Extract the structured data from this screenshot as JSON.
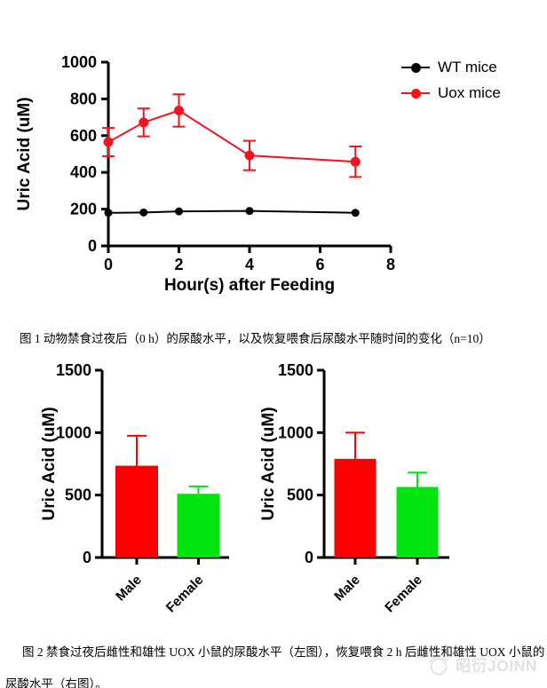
{
  "captions": {
    "fig1": "图 1 动物禁食过夜后（0 h）的尿酸水平，以及恢复喂食后尿酸水平随时间的变化（n=10）",
    "fig2_line1": "图 2 禁食过夜后雌性和雄性 UOX 小鼠的尿酸水平（左图），恢复喂食 2 h 后雌性和雄性 UOX 小鼠的",
    "fig2_line2": "尿酸水平（右图）。"
  },
  "watermark": {
    "text": "昭衍JOINN",
    "icon": "joinn-logo",
    "color": "#e2e2e2"
  },
  "chart_data": [
    {
      "id": "uric-acid-timecourse",
      "type": "line",
      "title": "",
      "xlabel": "Hour(s) after Feeding",
      "ylabel": "Uric Acid (uM)",
      "xlim": [
        0,
        8
      ],
      "ylim": [
        0,
        1000
      ],
      "xticks": [
        0,
        2,
        4,
        6,
        8
      ],
      "yticks": [
        0,
        200,
        400,
        600,
        800,
        1000
      ],
      "x": [
        0,
        1,
        2,
        4,
        7
      ],
      "series": [
        {
          "name": "WT mice",
          "color": "#000000",
          "values": [
            180,
            182,
            188,
            190,
            180
          ],
          "errors": [
            0,
            0,
            0,
            0,
            0
          ]
        },
        {
          "name": "Uox mice",
          "color": "#f1141e",
          "values": [
            565,
            672,
            737,
            492,
            458
          ],
          "errors": [
            77,
            76,
            88,
            80,
            83
          ]
        }
      ],
      "legend_position": "right",
      "grid": false
    },
    {
      "id": "uric-acid-by-sex-fasted",
      "type": "bar",
      "title": "",
      "ylabel": "Uric Acid (uM)",
      "ylim": [
        0,
        1500
      ],
      "yticks": [
        0,
        500,
        1000,
        1500
      ],
      "categories": [
        "Male",
        "Female"
      ],
      "values": [
        735,
        510
      ],
      "errors_up": [
        240,
        60
      ],
      "bar_colors": [
        "#fb0000",
        "#00e30e"
      ],
      "grid": false
    },
    {
      "id": "uric-acid-by-sex-refed-2h",
      "type": "bar",
      "title": "",
      "ylabel": "Uric Acid (uM)",
      "ylim": [
        0,
        1500
      ],
      "yticks": [
        0,
        500,
        1000,
        1500
      ],
      "categories": [
        "Male",
        "Female"
      ],
      "values": [
        790,
        565
      ],
      "errors_up": [
        210,
        115
      ],
      "bar_colors": [
        "#fb0000",
        "#00e30e"
      ],
      "grid": false
    }
  ]
}
